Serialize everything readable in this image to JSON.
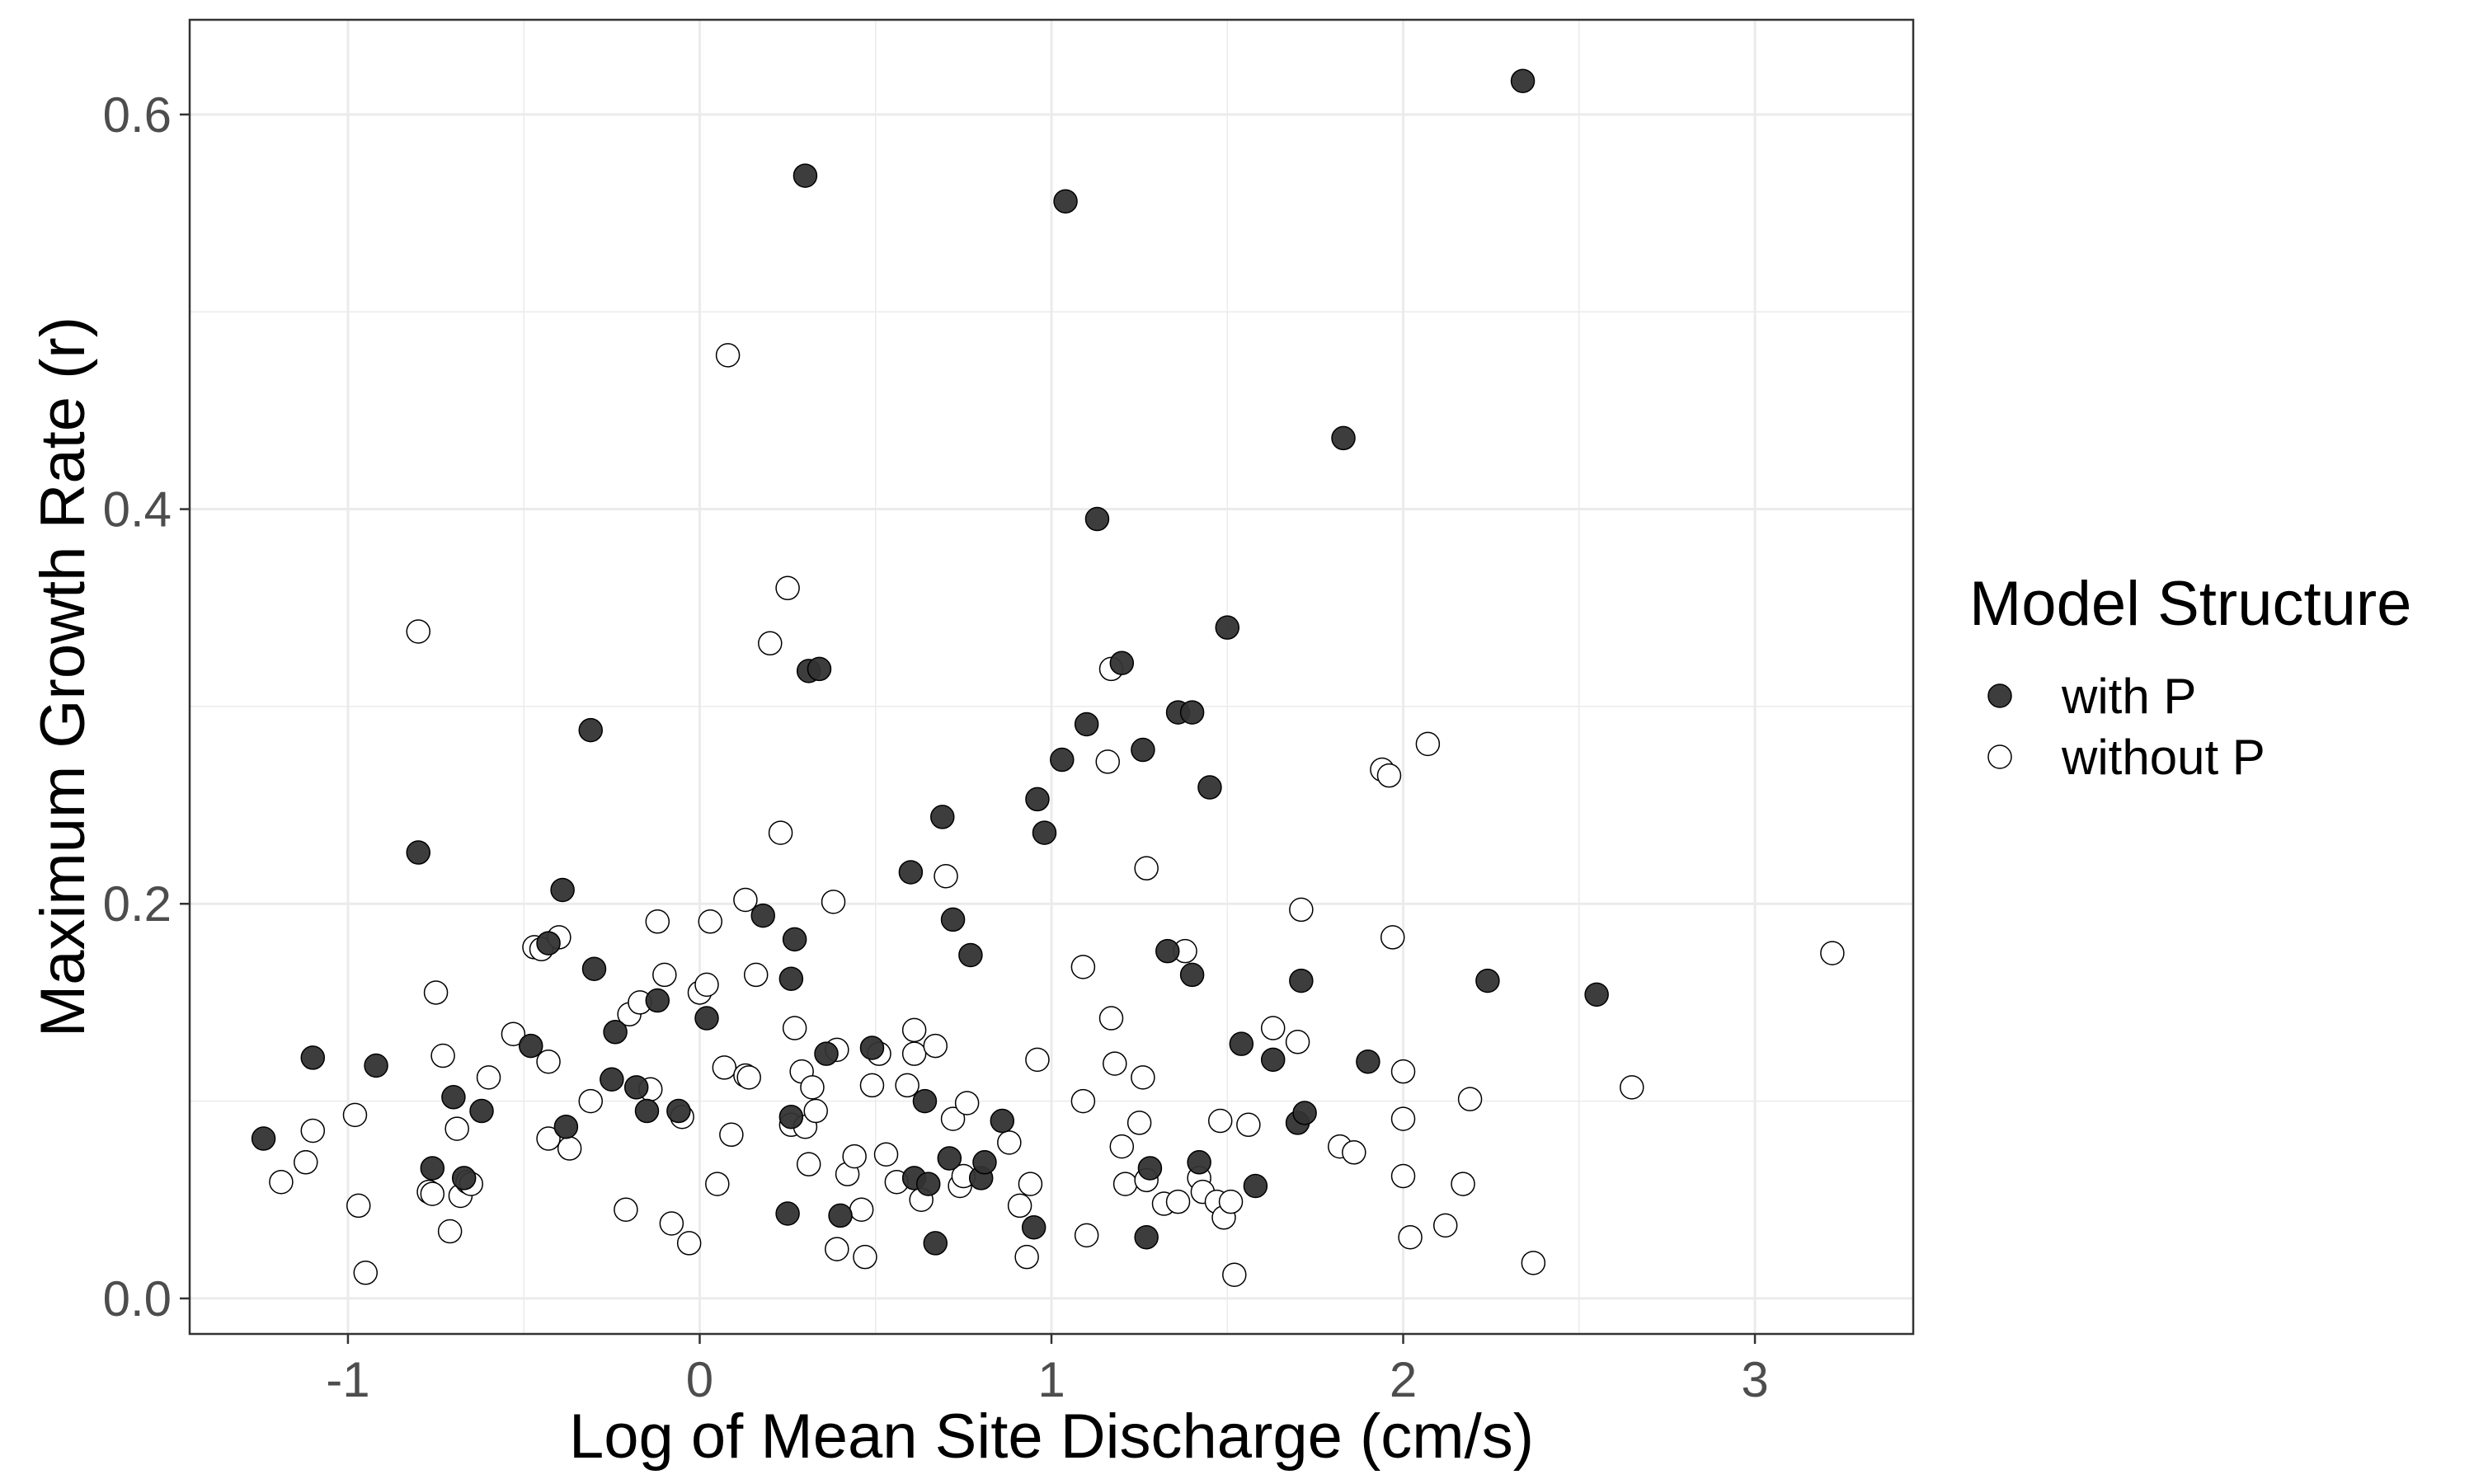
{
  "chart_data": {
    "type": "scatter",
    "title": "",
    "xlabel": "Log of Mean Site Discharge (cm/s)",
    "ylabel": "Maximum Growth Rate (r)",
    "xlim": [
      -1.45,
      3.45
    ],
    "ylim": [
      -0.018,
      0.648
    ],
    "x_ticks": [
      -1,
      0,
      1,
      2,
      3
    ],
    "x_tick_labels": [
      "-1",
      "0",
      "1",
      "2",
      "3"
    ],
    "y_ticks": [
      0.0,
      0.2,
      0.4,
      0.6
    ],
    "y_tick_labels": [
      "0.0",
      "0.2",
      "0.4",
      "0.6"
    ],
    "grid": true,
    "legend": {
      "title": "Model Structure",
      "position": "right"
    },
    "colors": {
      "with_p_fill": "#333333",
      "without_p_fill": "#ffffff",
      "marker_stroke": "#000000",
      "grid": "#ebebeb",
      "panel_border": "#333333"
    },
    "series": [
      {
        "name": "with P",
        "points": [
          [
            -1.24,
            0.081
          ],
          [
            -1.1,
            0.122
          ],
          [
            -0.92,
            0.118
          ],
          [
            -0.8,
            0.226
          ],
          [
            -0.76,
            0.066
          ],
          [
            -0.7,
            0.102
          ],
          [
            -0.67,
            0.061
          ],
          [
            -0.62,
            0.095
          ],
          [
            -0.48,
            0.128
          ],
          [
            -0.43,
            0.18
          ],
          [
            -0.39,
            0.207
          ],
          [
            -0.38,
            0.087
          ],
          [
            -0.31,
            0.288
          ],
          [
            -0.3,
            0.167
          ],
          [
            -0.25,
            0.111
          ],
          [
            -0.24,
            0.135
          ],
          [
            -0.18,
            0.107
          ],
          [
            -0.15,
            0.095
          ],
          [
            -0.12,
            0.151
          ],
          [
            -0.06,
            0.095
          ],
          [
            0.02,
            0.142
          ],
          [
            0.18,
            0.194
          ],
          [
            0.25,
            0.043
          ],
          [
            0.26,
            0.092
          ],
          [
            0.26,
            0.162
          ],
          [
            0.27,
            0.182
          ],
          [
            0.3,
            0.569
          ],
          [
            0.31,
            0.318
          ],
          [
            0.34,
            0.319
          ],
          [
            0.36,
            0.124
          ],
          [
            0.4,
            0.042
          ],
          [
            0.49,
            0.127
          ],
          [
            0.6,
            0.216
          ],
          [
            0.61,
            0.061
          ],
          [
            0.64,
            0.1
          ],
          [
            0.65,
            0.058
          ],
          [
            0.67,
            0.028
          ],
          [
            0.69,
            0.244
          ],
          [
            0.71,
            0.071
          ],
          [
            0.72,
            0.192
          ],
          [
            0.77,
            0.174
          ],
          [
            0.8,
            0.061
          ],
          [
            0.81,
            0.069
          ],
          [
            0.86,
            0.09
          ],
          [
            0.95,
            0.036
          ],
          [
            0.96,
            0.253
          ],
          [
            0.98,
            0.236
          ],
          [
            1.03,
            0.273
          ],
          [
            1.04,
            0.556
          ],
          [
            1.1,
            0.291
          ],
          [
            1.13,
            0.395
          ],
          [
            1.2,
            0.322
          ],
          [
            1.26,
            0.278
          ],
          [
            1.27,
            0.031
          ],
          [
            1.28,
            0.066
          ],
          [
            1.33,
            0.176
          ],
          [
            1.36,
            0.297
          ],
          [
            1.4,
            0.297
          ],
          [
            1.4,
            0.164
          ],
          [
            1.42,
            0.069
          ],
          [
            1.45,
            0.259
          ],
          [
            1.5,
            0.34
          ],
          [
            1.54,
            0.129
          ],
          [
            1.58,
            0.057
          ],
          [
            1.63,
            0.121
          ],
          [
            1.7,
            0.089
          ],
          [
            1.71,
            0.161
          ],
          [
            1.72,
            0.094
          ],
          [
            1.83,
            0.436
          ],
          [
            1.9,
            0.12
          ],
          [
            2.24,
            0.161
          ],
          [
            2.34,
            0.617
          ],
          [
            2.55,
            0.154
          ]
        ]
      },
      {
        "name": "without P",
        "points": [
          [
            -1.19,
            0.059
          ],
          [
            -1.12,
            0.069
          ],
          [
            -1.1,
            0.085
          ],
          [
            -0.98,
            0.093
          ],
          [
            -0.97,
            0.047
          ],
          [
            -0.95,
            0.013
          ],
          [
            -0.8,
            0.338
          ],
          [
            -0.77,
            0.054
          ],
          [
            -0.76,
            0.053
          ],
          [
            -0.75,
            0.155
          ],
          [
            -0.73,
            0.123
          ],
          [
            -0.71,
            0.034
          ],
          [
            -0.69,
            0.086
          ],
          [
            -0.68,
            0.052
          ],
          [
            -0.66,
            0.059
          ],
          [
            -0.65,
            0.058
          ],
          [
            -0.6,
            0.112
          ],
          [
            -0.53,
            0.134
          ],
          [
            -0.47,
            0.178
          ],
          [
            -0.45,
            0.177
          ],
          [
            -0.43,
            0.12
          ],
          [
            -0.43,
            0.081
          ],
          [
            -0.4,
            0.183
          ],
          [
            -0.37,
            0.076
          ],
          [
            -0.31,
            0.1
          ],
          [
            -0.21,
            0.045
          ],
          [
            -0.2,
            0.144
          ],
          [
            -0.17,
            0.15
          ],
          [
            -0.14,
            0.106
          ],
          [
            -0.12,
            0.191
          ],
          [
            -0.1,
            0.164
          ],
          [
            -0.08,
            0.038
          ],
          [
            -0.05,
            0.092
          ],
          [
            -0.03,
            0.028
          ],
          [
            0.0,
            0.155
          ],
          [
            0.02,
            0.159
          ],
          [
            0.03,
            0.191
          ],
          [
            0.05,
            0.058
          ],
          [
            0.07,
            0.117
          ],
          [
            0.08,
            0.478
          ],
          [
            0.09,
            0.083
          ],
          [
            0.13,
            0.202
          ],
          [
            0.13,
            0.113
          ],
          [
            0.14,
            0.112
          ],
          [
            0.16,
            0.164
          ],
          [
            0.2,
            0.332
          ],
          [
            0.23,
            0.236
          ],
          [
            0.25,
            0.36
          ],
          [
            0.26,
            0.088
          ],
          [
            0.27,
            0.137
          ],
          [
            0.29,
            0.115
          ],
          [
            0.3,
            0.087
          ],
          [
            0.31,
            0.068
          ],
          [
            0.32,
            0.107
          ],
          [
            0.33,
            0.095
          ],
          [
            0.38,
            0.201
          ],
          [
            0.39,
            0.126
          ],
          [
            0.39,
            0.025
          ],
          [
            0.42,
            0.063
          ],
          [
            0.44,
            0.072
          ],
          [
            0.46,
            0.045
          ],
          [
            0.47,
            0.021
          ],
          [
            0.49,
            0.108
          ],
          [
            0.51,
            0.124
          ],
          [
            0.53,
            0.073
          ],
          [
            0.56,
            0.059
          ],
          [
            0.59,
            0.108
          ],
          [
            0.61,
            0.124
          ],
          [
            0.61,
            0.136
          ],
          [
            0.63,
            0.05
          ],
          [
            0.67,
            0.128
          ],
          [
            0.7,
            0.214
          ],
          [
            0.72,
            0.091
          ],
          [
            0.74,
            0.057
          ],
          [
            0.75,
            0.062
          ],
          [
            0.76,
            0.099
          ],
          [
            0.88,
            0.079
          ],
          [
            0.91,
            0.047
          ],
          [
            0.93,
            0.021
          ],
          [
            0.94,
            0.058
          ],
          [
            0.96,
            0.121
          ],
          [
            1.09,
            0.1
          ],
          [
            1.09,
            0.168
          ],
          [
            1.1,
            0.032
          ],
          [
            1.16,
            0.272
          ],
          [
            1.17,
            0.142
          ],
          [
            1.17,
            0.319
          ],
          [
            1.18,
            0.119
          ],
          [
            1.2,
            0.077
          ],
          [
            1.21,
            0.058
          ],
          [
            1.25,
            0.089
          ],
          [
            1.26,
            0.112
          ],
          [
            1.27,
            0.06
          ],
          [
            1.27,
            0.218
          ],
          [
            1.32,
            0.048
          ],
          [
            1.36,
            0.049
          ],
          [
            1.38,
            0.176
          ],
          [
            1.42,
            0.061
          ],
          [
            1.43,
            0.054
          ],
          [
            1.47,
            0.049
          ],
          [
            1.48,
            0.09
          ],
          [
            1.49,
            0.041
          ],
          [
            1.51,
            0.049
          ],
          [
            1.52,
            0.012
          ],
          [
            1.56,
            0.088
          ],
          [
            1.63,
            0.137
          ],
          [
            1.7,
            0.13
          ],
          [
            1.71,
            0.197
          ],
          [
            1.82,
            0.077
          ],
          [
            1.86,
            0.074
          ],
          [
            1.94,
            0.268
          ],
          [
            1.96,
            0.265
          ],
          [
            1.97,
            0.183
          ],
          [
            2.0,
            0.115
          ],
          [
            2.0,
            0.091
          ],
          [
            2.0,
            0.062
          ],
          [
            2.02,
            0.031
          ],
          [
            2.07,
            0.281
          ],
          [
            2.12,
            0.037
          ],
          [
            2.17,
            0.058
          ],
          [
            2.19,
            0.101
          ],
          [
            2.37,
            0.018
          ],
          [
            2.65,
            0.107
          ],
          [
            3.22,
            0.175
          ]
        ]
      }
    ]
  }
}
